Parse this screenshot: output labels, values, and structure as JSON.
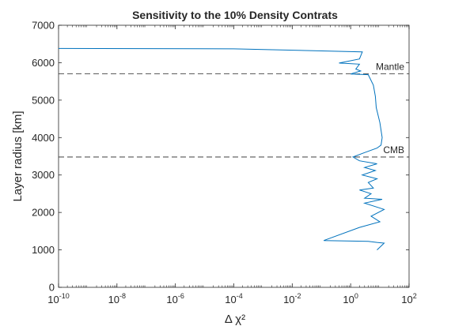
{
  "chart_data": {
    "type": "line",
    "title": "Sensitivity to the 10% Density Contrats",
    "xlabel": "Δ χ²",
    "ylabel": "Layer radius [km]",
    "x_scale": "log",
    "xlim": [
      1e-10,
      100
    ],
    "ylim": [
      0,
      7000
    ],
    "x_ticks": [
      {
        "value": 1e-10,
        "base": "10",
        "exp": "-10"
      },
      {
        "value": 1e-08,
        "base": "10",
        "exp": "-8"
      },
      {
        "value": 1e-06,
        "base": "10",
        "exp": "-6"
      },
      {
        "value": 0.0001,
        "base": "10",
        "exp": "-4"
      },
      {
        "value": 0.01,
        "base": "10",
        "exp": "-2"
      },
      {
        "value": 1,
        "base": "10",
        "exp": "0"
      },
      {
        "value": 100,
        "base": "10",
        "exp": "2"
      }
    ],
    "y_ticks": [
      0,
      1000,
      2000,
      3000,
      4000,
      5000,
      6000,
      7000
    ],
    "grid": false,
    "line_color": "#0072bd",
    "series": [
      {
        "x": [
          1e-10,
          0.0001,
          2.5,
          2.0,
          0.4,
          2.0,
          1.5,
          2.2,
          1.0,
          4.0,
          6.0,
          7.0,
          7.5,
          10,
          12,
          11,
          8,
          3,
          1.2,
          2,
          8,
          3,
          7,
          2.5,
          8,
          4,
          6,
          2,
          5,
          3,
          12,
          3,
          14,
          5,
          10,
          2,
          0.12,
          4,
          8,
          14,
          8
        ],
        "y": [
          6380,
          6370,
          6290,
          6100,
          5990,
          5960,
          5830,
          5780,
          5700,
          5680,
          5400,
          5100,
          4800,
          4400,
          4000,
          3800,
          3720,
          3600,
          3480,
          3380,
          3300,
          3200,
          3120,
          3000,
          2900,
          2800,
          2650,
          2600,
          2500,
          2380,
          2350,
          2250,
          2080,
          1900,
          1750,
          1600,
          1250,
          1230,
          1200,
          1180,
          1000
        ]
      }
    ],
    "reference_lines": [
      {
        "label": "Mantle",
        "y": 5700
      },
      {
        "label": "CMB",
        "y": 3480
      }
    ]
  }
}
